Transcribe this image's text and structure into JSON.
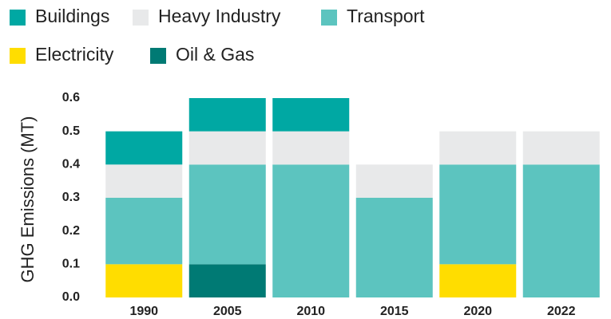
{
  "chart_data": {
    "type": "stacked_bar",
    "y_label": "GHG Emissions (MT)",
    "categories": [
      "1990",
      "2005",
      "2010",
      "2015",
      "2020",
      "2022"
    ],
    "series": [
      {
        "name": "Buildings",
        "color": "#00a8a3",
        "values": [
          0.1,
          0.1,
          0.1,
          0,
          0,
          0
        ]
      },
      {
        "name": "Heavy Industry",
        "color": "#e8e9ea",
        "values": [
          0.1,
          0.1,
          0.1,
          0.1,
          0.1,
          0.1
        ]
      },
      {
        "name": "Transport",
        "color": "#5cc4bf",
        "values": [
          0.2,
          0.3,
          0.4,
          0.3,
          0.3,
          0.4
        ]
      },
      {
        "name": "Electricity",
        "color": "#ffdd00",
        "values": [
          0.1,
          0,
          0,
          0,
          0.1,
          0
        ]
      },
      {
        "name": "Oil & Gas",
        "color": "#007a74",
        "values": [
          0,
          0.1,
          0,
          0,
          0,
          0
        ]
      }
    ],
    "ylim": [
      0,
      0.6
    ],
    "yticks": [
      {
        "value": 0,
        "label": "0.0"
      },
      0.1,
      0.2,
      0.3,
      0.4,
      0.5,
      0.6
    ],
    "grid": false
  }
}
